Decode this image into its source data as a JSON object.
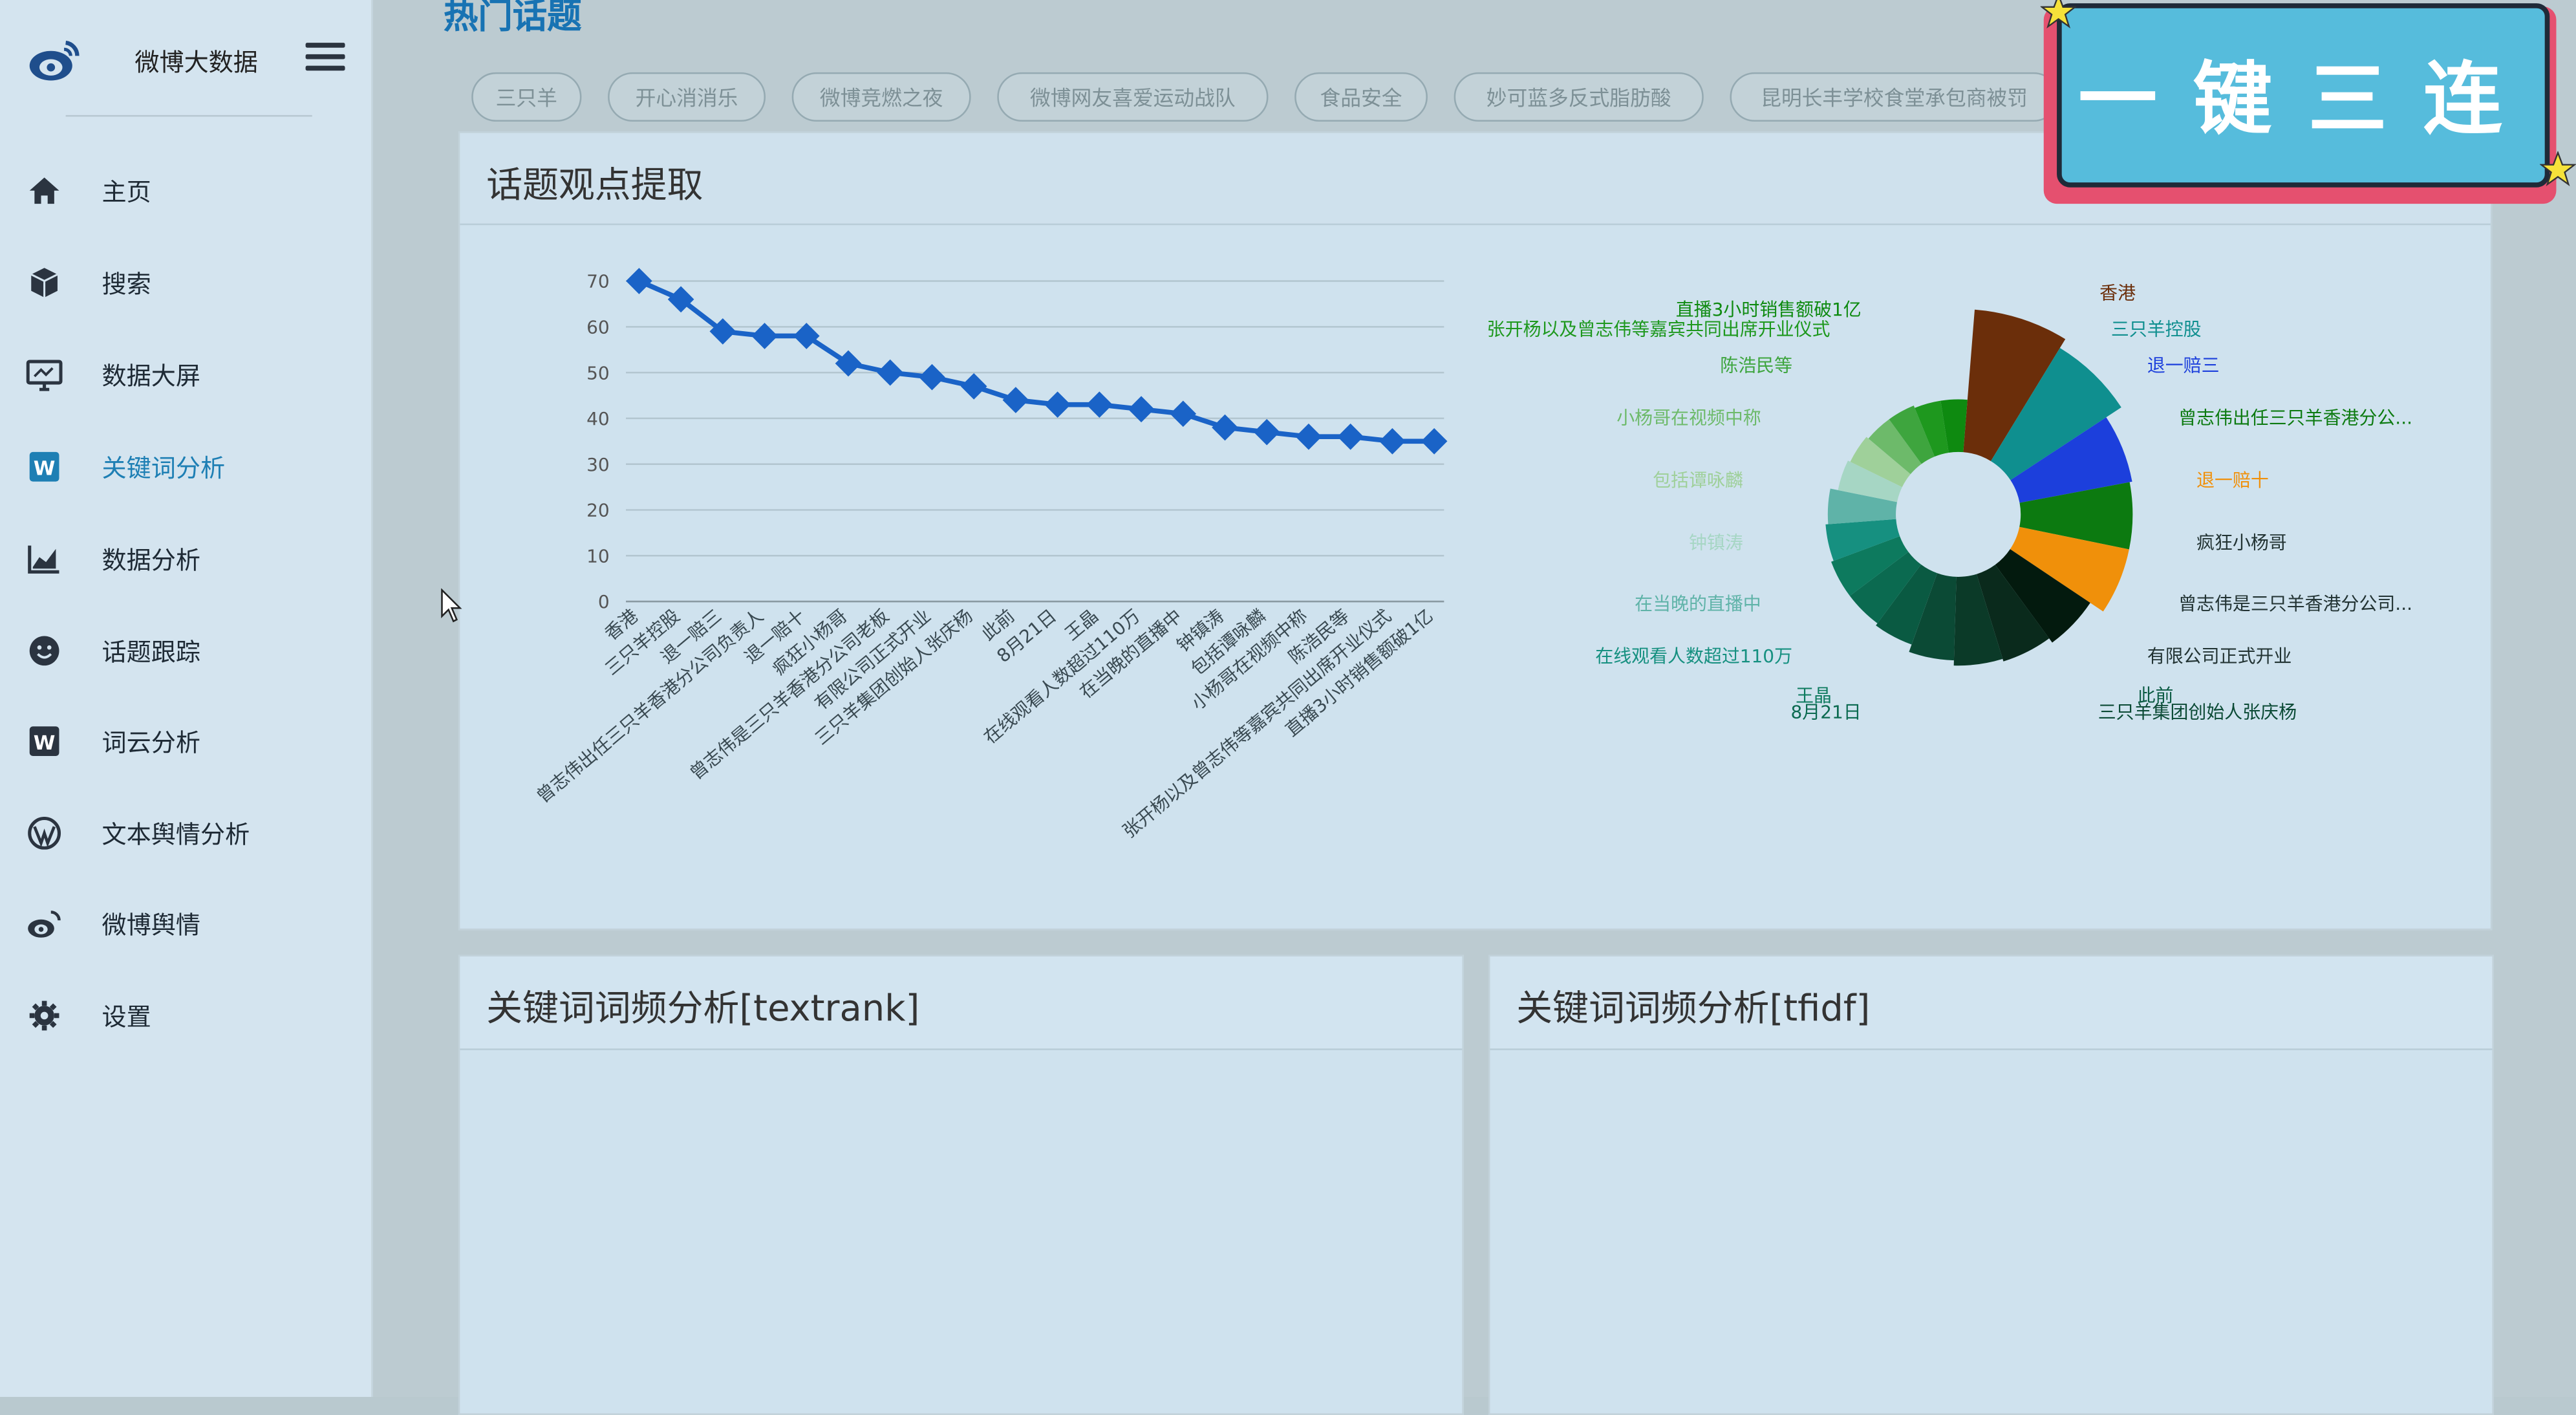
{
  "sidebar": {
    "brand": "微博大数据",
    "items": [
      {
        "label": "主页",
        "icon": "home-icon"
      },
      {
        "label": "搜索",
        "icon": "cube-icon"
      },
      {
        "label": "数据大屏",
        "icon": "monitor-icon"
      },
      {
        "label": "关键词分析",
        "icon": "word-icon"
      },
      {
        "label": "数据分析",
        "icon": "chart-line-icon"
      },
      {
        "label": "话题跟踪",
        "icon": "smiley-icon"
      },
      {
        "label": "词云分析",
        "icon": "word-icon"
      },
      {
        "label": "文本舆情分析",
        "icon": "wordpress-icon"
      },
      {
        "label": "微博舆情",
        "icon": "weibo-icon"
      },
      {
        "label": "设置",
        "icon": "gear-icon"
      }
    ],
    "active_index": 3
  },
  "main": {
    "hot_title": "热门话题",
    "tags": [
      "三只羊",
      "开心消消乐",
      "微博竞燃之夜",
      "微博网友喜爱运动战队",
      "食品安全",
      "妙可蓝多反式脂肪酸",
      "昆明长丰学校食堂承包商被罚"
    ],
    "panels": {
      "opinion": "话题观点提取",
      "textrank": "关键词词频分析[textrank]",
      "tfidf": "关键词词频分析[tfidf]"
    }
  },
  "banner": {
    "text": "一键三连"
  },
  "colors": {
    "accent": "#1e7fb4",
    "line": "#1a63c7",
    "banner_bg": "#56bcdc",
    "banner_border": "#e5506f"
  },
  "chart_data": [
    {
      "type": "line",
      "categories": [
        "香港",
        "三只羊控股",
        "退一赔三",
        "曾志伟出任三只羊香港分公司负责人",
        "退一赔十",
        "疯狂小杨哥",
        "曾志伟是三只羊香港分公司老板",
        "有限公司正式开业",
        "三只羊集团创始人张庆杨",
        "此前",
        "8月21日",
        "王晶",
        "在线观看人数超过110万",
        "在当晚的直播中",
        "钟镇涛",
        "包括谭咏麟",
        "小杨哥在视频中称",
        "陈浩民等",
        "张开杨以及曾志伟等嘉宾共同出席开业仪式",
        "直播3小时销售额破1亿"
      ],
      "values": [
        70,
        66,
        59,
        58,
        58,
        52,
        50,
        49,
        47,
        44,
        43,
        43,
        42,
        41,
        38,
        37,
        36,
        36,
        35,
        35
      ],
      "ylim": [
        0,
        70
      ],
      "yticks": [
        0,
        10,
        20,
        30,
        40,
        50,
        60,
        70
      ],
      "grid": true
    },
    {
      "type": "pie",
      "variant": "rose-donut",
      "slices": [
        {
          "label": "香港",
          "value": 70,
          "color": "#6b2e0a"
        },
        {
          "label": "三只羊控股",
          "value": 66,
          "color": "#0f8f8f"
        },
        {
          "label": "退一赔三",
          "value": 59,
          "color": "#1c3fdc"
        },
        {
          "label": "曾志伟出任三只羊香港分公...",
          "value": 58,
          "color": "#0c7a10"
        },
        {
          "label": "退一赔十",
          "value": 58,
          "color": "#f0900a"
        },
        {
          "label": "疯狂小杨哥",
          "value": 52,
          "color": "#031a0e"
        },
        {
          "label": "曾志伟是三只羊香港分公司...",
          "value": 50,
          "color": "#0a2a1c"
        },
        {
          "label": "有限公司正式开业",
          "value": 49,
          "color": "#0b3a28"
        },
        {
          "label": "三只羊集团创始人张庆杨",
          "value": 47,
          "color": "#0b4a35"
        },
        {
          "label": "此前",
          "value": 44,
          "color": "#0a5a42"
        },
        {
          "label": "8月21日",
          "value": 43,
          "color": "#0b6a50"
        },
        {
          "label": "王晶",
          "value": 43,
          "color": "#0d7a5e"
        },
        {
          "label": "在线观看人数超过110万",
          "value": 42,
          "color": "#169080"
        },
        {
          "label": "在当晚的直播中",
          "value": 41,
          "color": "#5fb3a8"
        },
        {
          "label": "钟镇涛",
          "value": 38,
          "color": "#a6d6c4"
        },
        {
          "label": "包括谭咏麟",
          "value": 37,
          "color": "#9fd09a"
        },
        {
          "label": "小杨哥在视频中称",
          "value": 36,
          "color": "#6dba6a"
        },
        {
          "label": "陈浩民等",
          "value": 36,
          "color": "#3ea53e"
        },
        {
          "label": "张开杨以及曾志伟等嘉宾共同出席开业仪式",
          "value": 35,
          "color": "#1e981e"
        },
        {
          "label": "直播3小时销售额破1亿",
          "value": 35,
          "color": "#0e8a10"
        }
      ]
    }
  ]
}
